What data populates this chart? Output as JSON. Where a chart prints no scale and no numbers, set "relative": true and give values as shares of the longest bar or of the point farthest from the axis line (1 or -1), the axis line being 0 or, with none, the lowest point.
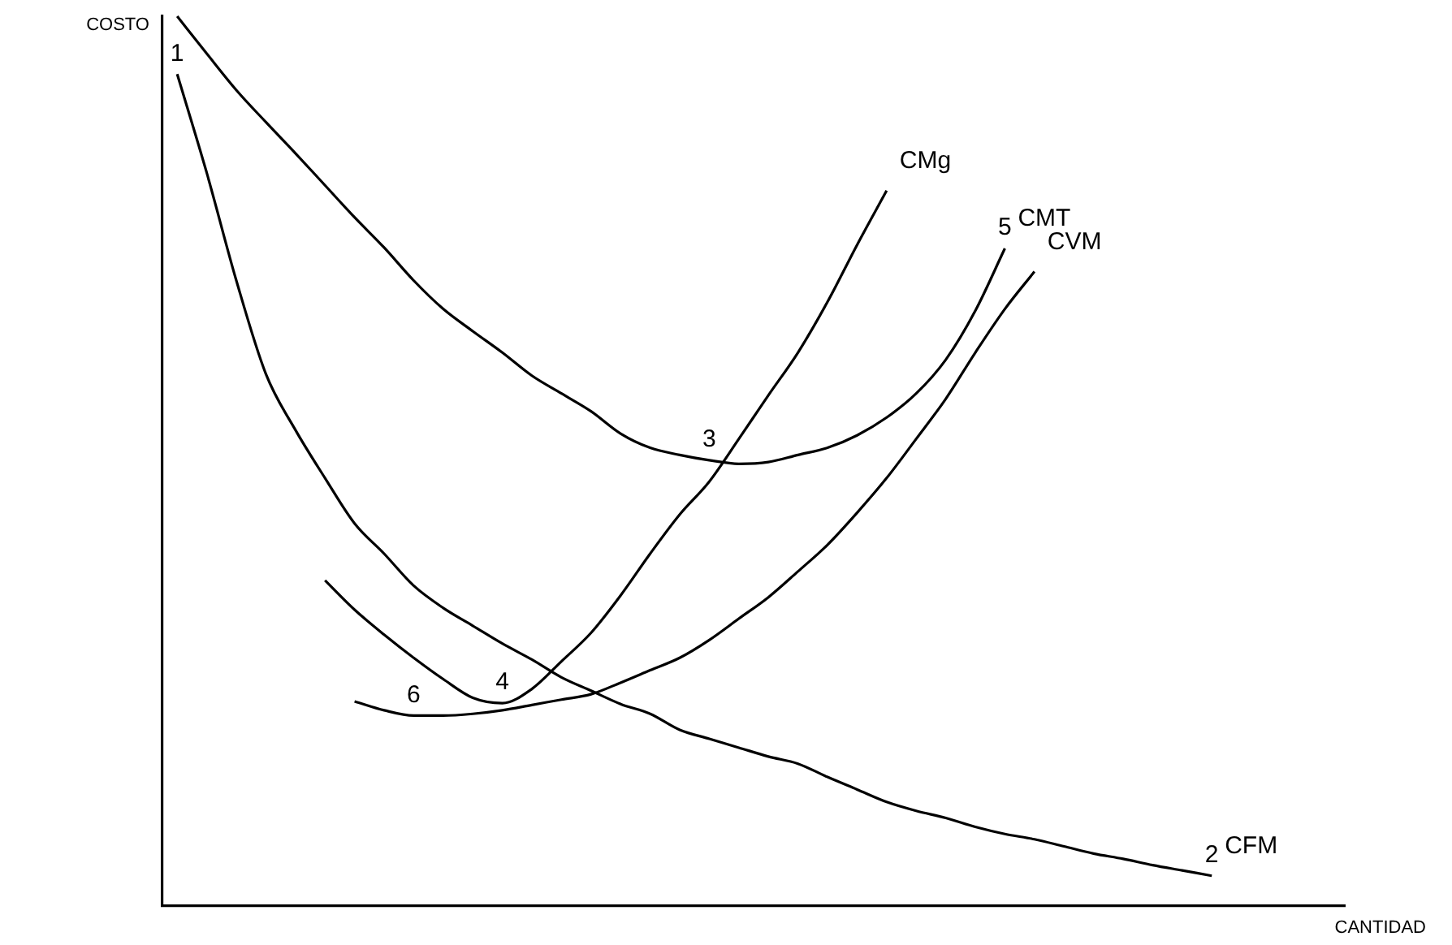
{
  "chart_data": {
    "type": "line",
    "xlabel": "CANTIDAD",
    "ylabel": "COSTO",
    "relative": true,
    "legend": false,
    "marker": "none",
    "line_style": "solid",
    "grid": false,
    "annotations": [
      {
        "text": "1",
        "y": 0.935
      },
      {
        "text": "2",
        "y": 0.034
      },
      {
        "text": "3",
        "y": 0.501
      },
      {
        "text": "4",
        "y": 0.228
      },
      {
        "text": "5",
        "y": 0.739
      },
      {
        "text": "6",
        "y": 0.214
      }
    ],
    "categories": [
      null,
      null,
      null,
      null,
      null,
      null,
      null,
      null,
      null,
      null,
      null,
      null,
      null,
      null,
      null,
      null,
      null,
      null,
      null,
      null,
      null,
      null,
      null,
      null,
      null,
      null,
      null,
      null,
      null,
      null,
      null,
      null,
      null,
      null,
      null,
      null,
      null,
      null,
      null,
      null
    ],
    "series": [
      {
        "name": "CMT",
        "color": "#000000",
        "values": [
          1.0,
          0.958,
          0.917,
          0.881,
          0.846,
          0.81,
          0.774,
          0.74,
          0.703,
          0.671,
          0.646,
          0.622,
          0.596,
          0.576,
          0.556,
          0.531,
          0.515,
          0.507,
          0.501,
          0.497,
          0.499,
          0.507,
          0.515,
          0.529,
          0.549,
          0.576,
          0.614,
          0.669,
          0.739,
          null,
          null,
          null,
          null,
          null,
          null,
          null,
          null,
          null,
          null,
          null
        ]
      },
      {
        "name": "CFM",
        "color": "#000000",
        "values": [
          0.935,
          0.824,
          0.703,
          0.598,
          0.535,
          0.481,
          0.43,
          0.396,
          0.36,
          0.335,
          0.315,
          0.295,
          0.277,
          0.257,
          0.242,
          0.227,
          0.216,
          0.198,
          0.188,
          0.178,
          0.168,
          0.16,
          0.145,
          0.131,
          0.117,
          0.107,
          0.099,
          0.089,
          0.081,
          0.075,
          0.067,
          0.059,
          0.053,
          0.046,
          0.04,
          0.034,
          null,
          null,
          null,
          null
        ]
      },
      {
        "name": "CMg",
        "color": "#000000",
        "values": [
          null,
          null,
          null,
          null,
          null,
          0.366,
          0.333,
          0.305,
          0.279,
          0.255,
          0.234,
          0.228,
          0.244,
          0.275,
          0.307,
          0.349,
          0.396,
          0.44,
          0.477,
          0.525,
          0.574,
          0.622,
          0.679,
          0.743,
          0.804,
          null,
          null,
          null,
          null,
          null,
          null,
          null,
          null,
          null,
          null,
          null,
          null,
          null,
          null,
          null
        ]
      },
      {
        "name": "CVM",
        "color": "#000000",
        "values": [
          null,
          null,
          null,
          null,
          null,
          null,
          0.23,
          0.22,
          0.214,
          0.214,
          0.216,
          0.22,
          0.226,
          0.232,
          0.238,
          0.251,
          0.265,
          0.279,
          0.299,
          0.323,
          0.347,
          0.376,
          0.406,
          0.442,
          0.481,
          0.525,
          0.57,
          0.622,
          0.671,
          0.713,
          null,
          null,
          null,
          null,
          null,
          null,
          null,
          null,
          null,
          null
        ]
      }
    ]
  }
}
